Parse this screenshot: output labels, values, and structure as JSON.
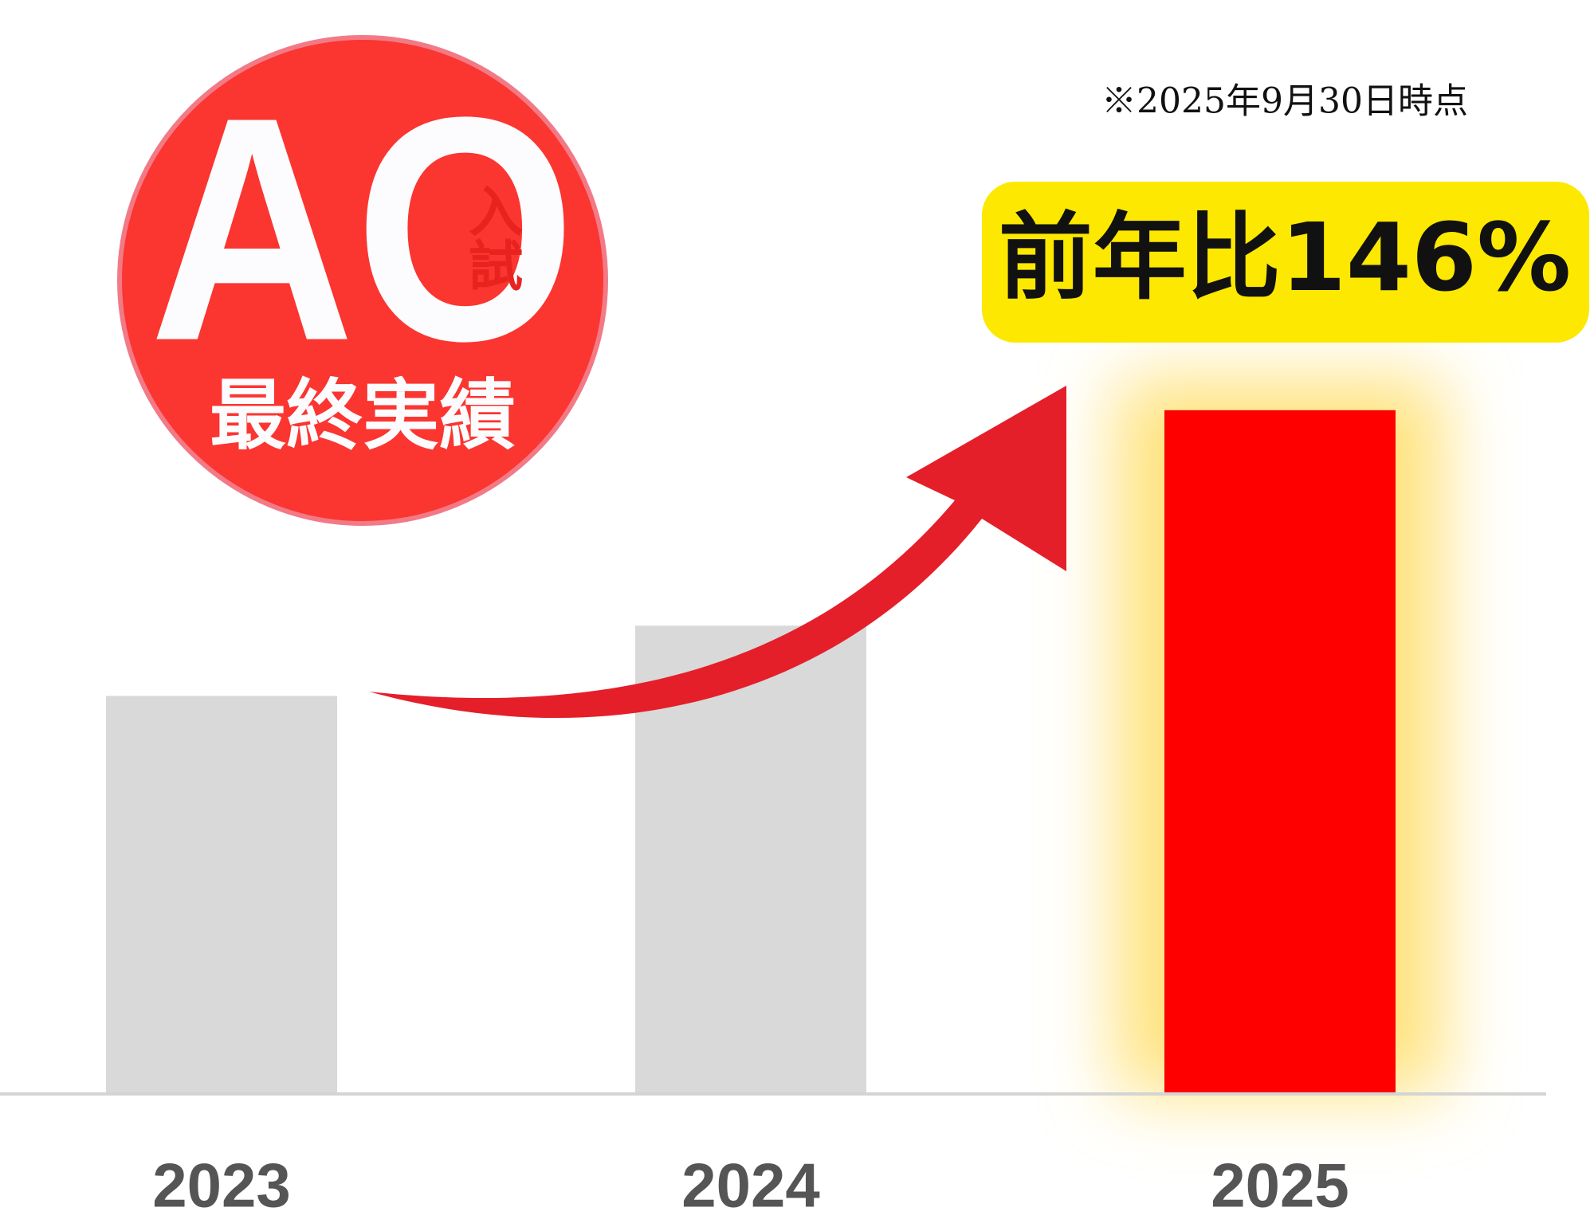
{
  "chart_data": {
    "type": "bar",
    "categories": [
      "2023",
      "2024",
      "2025"
    ],
    "values": [
      85,
      100,
      146
    ],
    "colors": [
      "#d9d9d9",
      "#d9d9d9",
      "#ff0000"
    ],
    "ylim": [
      0,
      180
    ],
    "note": "※2025年9月30日時点",
    "annotation": "前年比146%",
    "badge": {
      "main": "AO",
      "sub": "入試",
      "caption": "最終実績"
    }
  }
}
